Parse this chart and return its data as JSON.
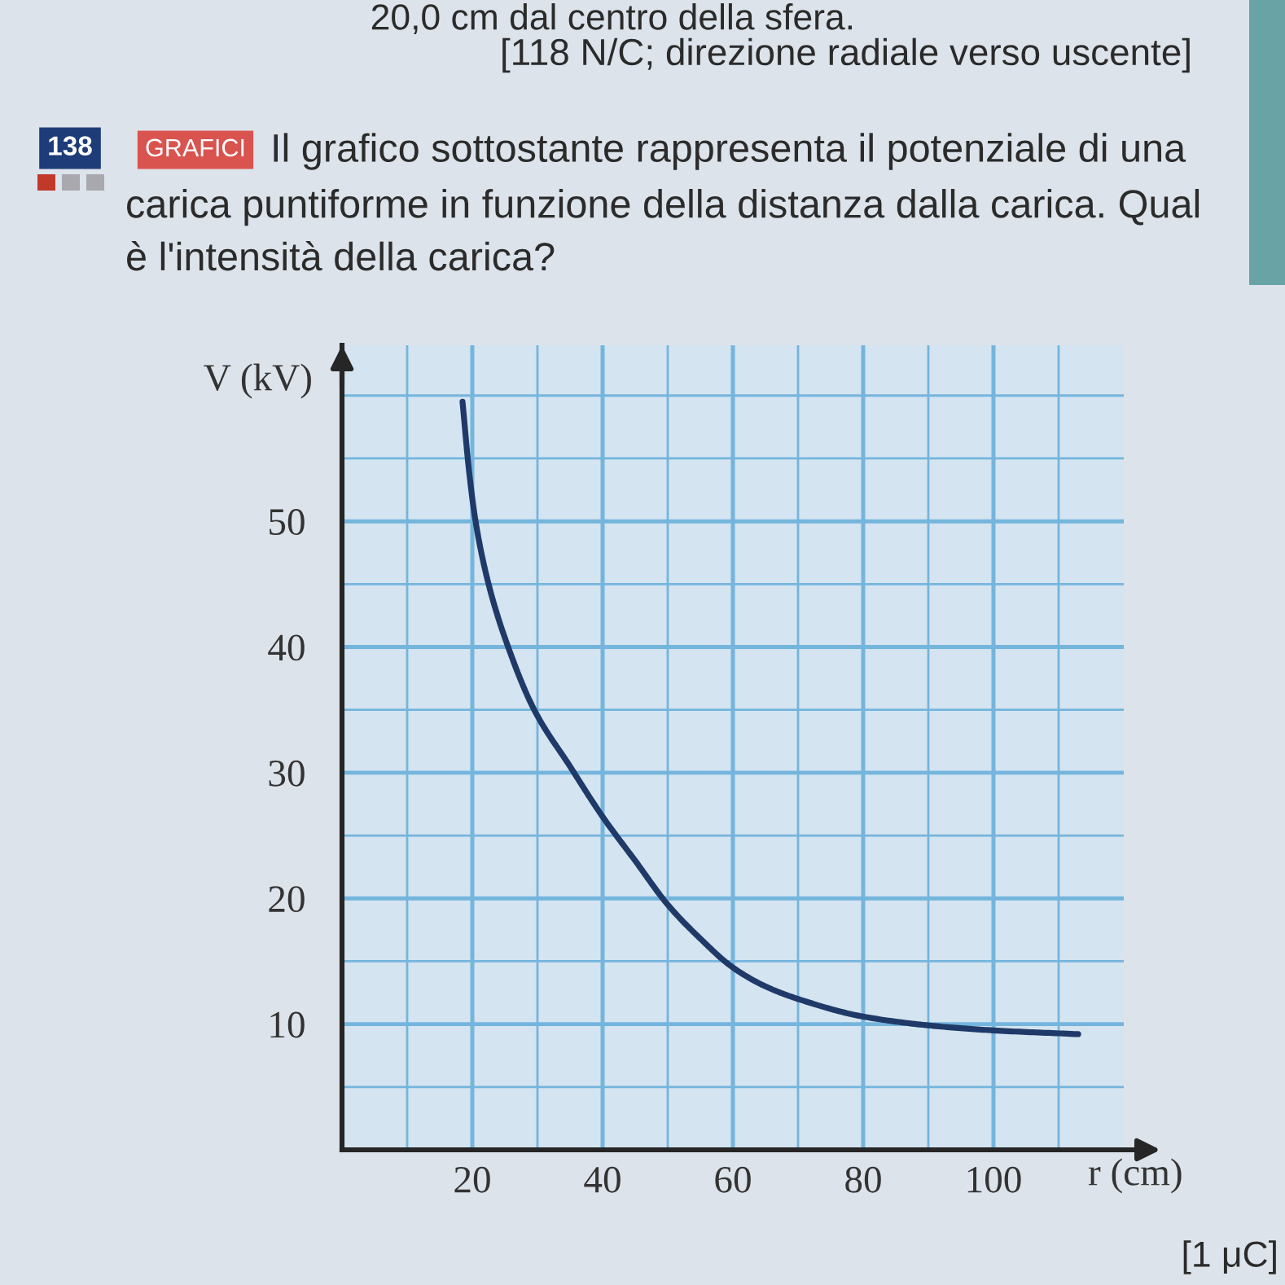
{
  "chart_data": {
    "type": "line",
    "title": "GRAFICI Il grafico sottostante rappresenta il potenziale di una\ncarica puntiforme in funzione della distanza dalla carica. Qual\nè l'intensità della carica?",
    "xlabel": "r (cm)",
    "ylabel": "V (kV)",
    "annotations": [
      "20,0 cm dal centro della sfera.",
      "[118 N/C; direzione radiale verso uscente]",
      "138",
      "[1 μC]"
    ],
    "x": [
      18.5,
      19.5,
      20.5,
      22.5,
      25.5,
      29.5,
      35,
      40,
      45,
      50,
      55,
      60,
      65,
      70,
      80,
      90,
      100,
      113
    ],
    "series": [
      {
        "color": "#1f3a68",
        "values": [
          59.5,
          54,
          50,
          45,
          40,
          35,
          30.5,
          26.5,
          23,
          19.5,
          16.8,
          14.5,
          13,
          12,
          10.6,
          9.9,
          9.5,
          9.2
        ]
      }
    ],
    "xlim": [
      0,
      120
    ],
    "xticks": [
      {
        "value": 10,
        "label": null
      },
      20,
      {
        "value": 30,
        "label": null
      },
      40,
      {
        "value": 50,
        "label": null
      },
      60,
      {
        "value": 70,
        "label": null
      },
      80,
      {
        "value": 90,
        "label": null
      },
      100,
      {
        "value": 110,
        "label": null
      }
    ],
    "ylim": [
      0,
      64
    ],
    "yticks": [
      {
        "value": 5,
        "label": null
      },
      10,
      {
        "value": 15,
        "label": null
      },
      20,
      {
        "value": 25,
        "label": null
      },
      30,
      {
        "value": 35,
        "label": null
      },
      40,
      {
        "value": 45,
        "label": null
      },
      50,
      {
        "value": 55,
        "label": null
      },
      {
        "value": 60,
        "label": null
      }
    ],
    "grid": true
  }
}
